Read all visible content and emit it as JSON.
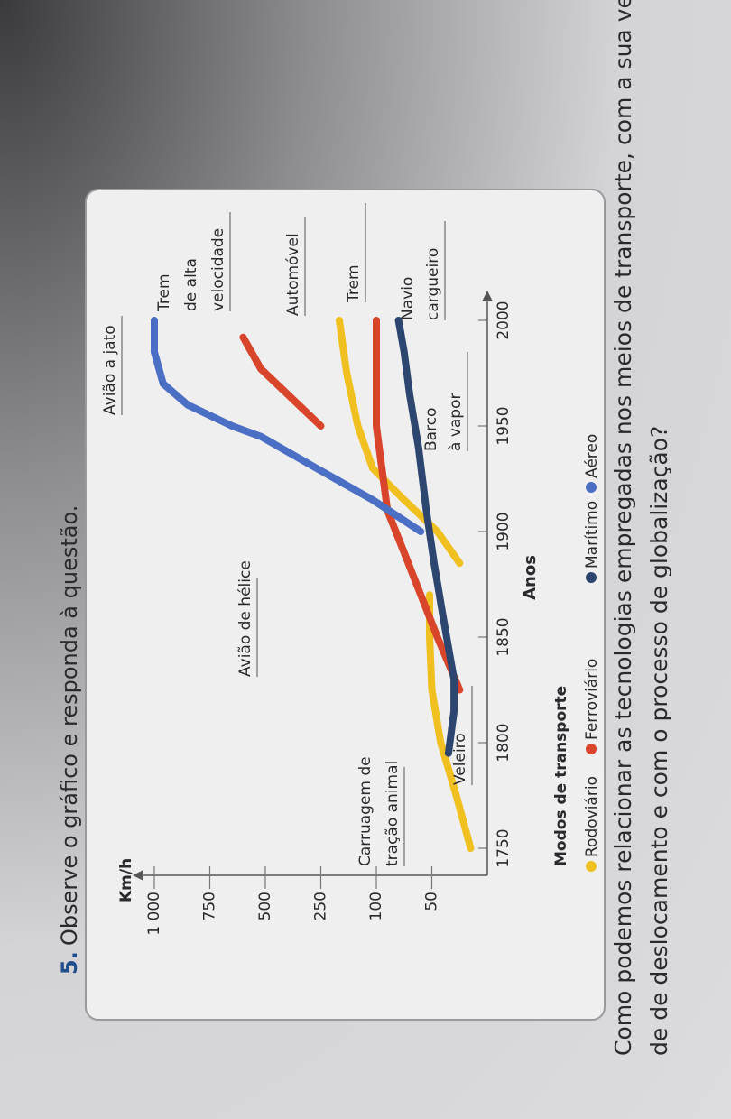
{
  "header": {
    "number": "5.",
    "text": "Observe o gráfico e responda à questão."
  },
  "chart_data": {
    "type": "line",
    "y_label": "Km/h",
    "x_label": "Anos",
    "legend_title": "Modos de transporte",
    "xlim": [
      1750,
      2000
    ],
    "xticks": [
      1750,
      1800,
      1850,
      1900,
      1950,
      2000
    ],
    "ylim": [
      0,
      1000
    ],
    "yticks": [
      50,
      100,
      250,
      500,
      750,
      {
        "value": 1000,
        "label": "1 000"
      }
    ],
    "annotations": [
      [
        "Carruagem de",
        "tração animal"
      ],
      [
        "Veleiro"
      ],
      [
        "Avião de hélice"
      ],
      [
        "Avião a jato"
      ],
      [
        "Trem",
        "de alta",
        "velocidade"
      ],
      [
        "Automóvel"
      ],
      [
        "Trem"
      ],
      [
        "Navio",
        "cargueiro"
      ],
      [
        "Barco",
        "à vapor"
      ]
    ],
    "series": [
      {
        "name": "Rodoviário",
        "color": "#f0c020",
        "x": [
          1750,
          1775,
          1800,
          1825,
          1850,
          1870,
          1880,
          1885,
          1900,
          1915,
          1930,
          1950,
          1975,
          2000
        ],
        "values": [
          15,
          28,
          42,
          50,
          52,
          52,
          null,
          25,
          45,
          75,
          110,
          150,
          180,
          200
        ]
      },
      {
        "name": "Ferroviário",
        "color": "#d9452a",
        "x": [
          1825,
          1850,
          1870,
          1890,
          1910,
          1950,
          2000,
          2000,
          1950,
          1967,
          1977,
          1992
        ],
        "values": [
          25,
          45,
          60,
          75,
          90,
          100,
          100,
          null,
          250,
          420,
          520,
          600
        ]
      },
      {
        "name": "Marítimo",
        "color": "#2d4670",
        "x": [
          1795,
          1815,
          1830,
          1860,
          1885,
          1910,
          1940,
          1965,
          1985,
          2000
        ],
        "values": [
          35,
          30,
          30,
          40,
          48,
          55,
          62,
          70,
          75,
          80
        ]
      },
      {
        "name": "Aéreo",
        "color": "#4a6fc4",
        "x": [
          1900,
          1915,
          1930,
          1945,
          1950,
          1960,
          1970,
          1985,
          2000
        ],
        "values": [
          60,
          110,
          270,
          520,
          650,
          850,
          960,
          1000,
          1000
        ]
      }
    ]
  },
  "question": [
    "Como podemos relacionar as tecnologias empregadas nos meios de transporte, com a sua velocida-",
    "de de deslocamento e com o processo de globalização?"
  ]
}
